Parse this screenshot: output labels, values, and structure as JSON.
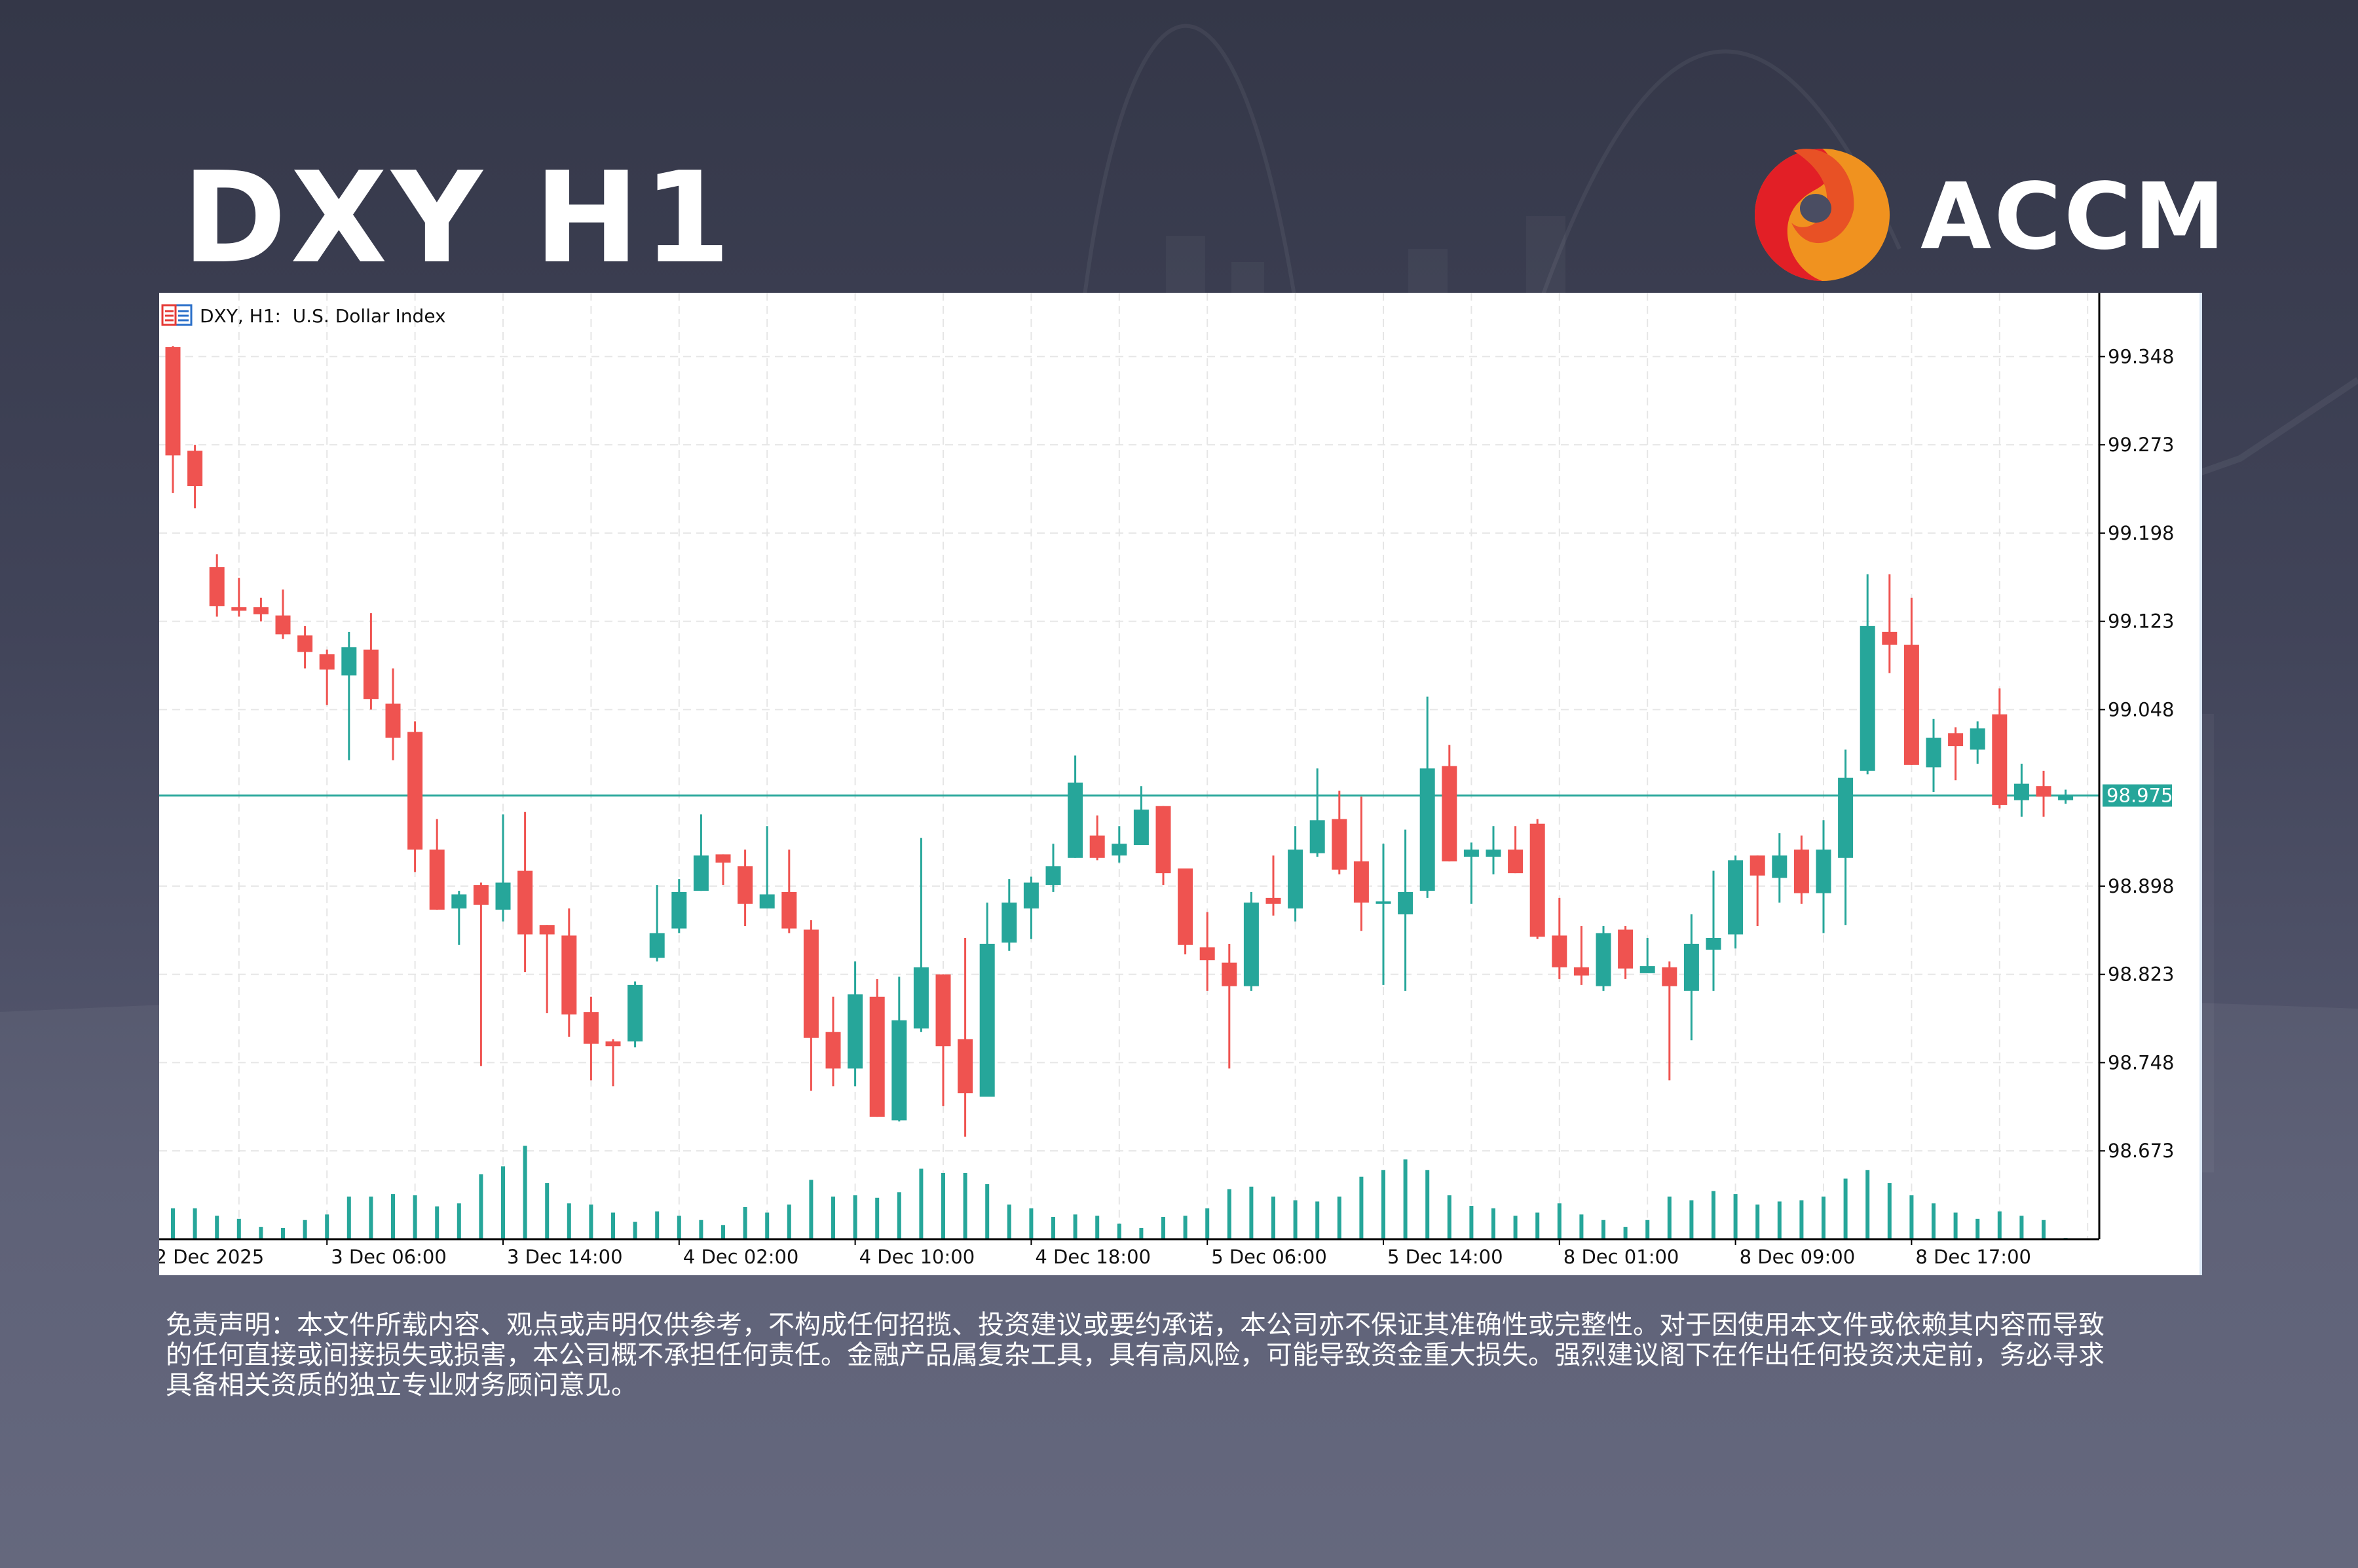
{
  "header": {
    "title": "DXY H1",
    "brand": "ACCM"
  },
  "chart_data": {
    "type": "candlestick",
    "legend": "DXY, H1:  U.S. Dollar Index",
    "current_price": "98.975",
    "colors": {
      "bull": "#26a69a",
      "bear": "#ef5350",
      "current_line": "#26a69a"
    },
    "grid": true,
    "y_ticks": [
      "99.348",
      "99.273",
      "99.198",
      "99.123",
      "99.048",
      "98.898",
      "98.823",
      "98.748",
      "98.673"
    ],
    "x_labels": [
      {
        "text": "2 Dec 2025",
        "bar": 0
      },
      {
        "text": "3 Dec 06:00",
        "bar": 8
      },
      {
        "text": "3 Dec 14:00",
        "bar": 16
      },
      {
        "text": "4 Dec 02:00",
        "bar": 24
      },
      {
        "text": "4 Dec 10:00",
        "bar": 32
      },
      {
        "text": "4 Dec 18:00",
        "bar": 40
      },
      {
        "text": "5 Dec 06:00",
        "bar": 48
      },
      {
        "text": "5 Dec 14:00",
        "bar": 56
      },
      {
        "text": "8 Dec 01:00",
        "bar": 64
      },
      {
        "text": "8 Dec 09:00",
        "bar": 72
      },
      {
        "text": "8 Dec 17:00",
        "bar": 80
      }
    ],
    "ohlc": [
      [
        99.356,
        99.357,
        99.232,
        99.264
      ],
      [
        99.268,
        99.273,
        99.219,
        99.238
      ],
      [
        99.169,
        99.18,
        99.127,
        99.136
      ],
      [
        99.135,
        99.16,
        99.127,
        99.132
      ],
      [
        99.135,
        99.143,
        99.123,
        99.129
      ],
      [
        99.128,
        99.15,
        99.108,
        99.112
      ],
      [
        99.111,
        99.119,
        99.083,
        99.097
      ],
      [
        99.095,
        99.099,
        99.052,
        99.082
      ],
      [
        99.077,
        99.114,
        99.005,
        99.101
      ],
      [
        99.099,
        99.13,
        99.048,
        99.057
      ],
      [
        99.053,
        99.083,
        99.005,
        99.024
      ],
      [
        99.029,
        99.038,
        98.91,
        98.929
      ],
      [
        98.929,
        98.955,
        98.878,
        98.878
      ],
      [
        98.879,
        98.894,
        98.848,
        98.891
      ],
      [
        98.899,
        98.901,
        98.745,
        98.882
      ],
      [
        98.878,
        98.959,
        98.868,
        98.901
      ],
      [
        98.911,
        98.961,
        98.825,
        98.857
      ],
      [
        98.865,
        98.865,
        98.79,
        98.857
      ],
      [
        98.856,
        98.879,
        98.77,
        98.789
      ],
      [
        98.791,
        98.804,
        98.733,
        98.764
      ],
      [
        98.766,
        98.768,
        98.728,
        98.762
      ],
      [
        98.766,
        98.817,
        98.761,
        98.814
      ],
      [
        98.837,
        98.899,
        98.834,
        98.858
      ],
      [
        98.862,
        98.904,
        98.858,
        98.893
      ],
      [
        98.894,
        98.959,
        98.894,
        98.924
      ],
      [
        98.925,
        98.925,
        98.899,
        98.918
      ],
      [
        98.915,
        98.929,
        98.864,
        98.883
      ],
      [
        98.879,
        98.949,
        98.879,
        98.891
      ],
      [
        98.893,
        98.929,
        98.858,
        98.862
      ],
      [
        98.861,
        98.869,
        98.724,
        98.769
      ],
      [
        98.774,
        98.804,
        98.728,
        98.743
      ],
      [
        98.743,
        98.834,
        98.728,
        98.806
      ],
      [
        98.804,
        98.819,
        98.702,
        98.702
      ],
      [
        98.699,
        98.821,
        98.698,
        98.784
      ],
      [
        98.777,
        98.939,
        98.774,
        98.829
      ],
      [
        98.823,
        98.823,
        98.711,
        98.762
      ],
      [
        98.768,
        98.854,
        98.685,
        98.722
      ],
      [
        98.719,
        98.884,
        98.719,
        98.849
      ],
      [
        98.85,
        98.904,
        98.843,
        98.884
      ],
      [
        98.879,
        98.906,
        98.853,
        98.901
      ],
      [
        98.899,
        98.934,
        98.893,
        98.915
      ],
      [
        98.922,
        99.009,
        98.922,
        98.986
      ],
      [
        98.941,
        98.958,
        98.92,
        98.922
      ],
      [
        98.924,
        98.949,
        98.918,
        98.934
      ],
      [
        98.933,
        98.983,
        98.933,
        98.963
      ],
      [
        98.966,
        98.966,
        98.899,
        98.909
      ],
      [
        98.913,
        98.913,
        98.84,
        98.848
      ],
      [
        98.846,
        98.876,
        98.809,
        98.835
      ],
      [
        98.833,
        98.849,
        98.743,
        98.813
      ],
      [
        98.813,
        98.893,
        98.809,
        98.884
      ],
      [
        98.888,
        98.924,
        98.873,
        98.883
      ],
      [
        98.879,
        98.949,
        98.868,
        98.929
      ],
      [
        98.926,
        98.998,
        98.923,
        98.954
      ],
      [
        98.955,
        98.979,
        98.908,
        98.912
      ],
      [
        98.919,
        98.974,
        98.86,
        98.884
      ],
      [
        98.883,
        98.934,
        98.814,
        98.885
      ],
      [
        98.874,
        98.946,
        98.809,
        98.893
      ],
      [
        98.894,
        99.059,
        98.888,
        98.998
      ],
      [
        99.0,
        99.018,
        98.919,
        98.919
      ],
      [
        98.923,
        98.935,
        98.883,
        98.929
      ],
      [
        98.923,
        98.949,
        98.908,
        98.929
      ],
      [
        98.929,
        98.949,
        98.909,
        98.909
      ],
      [
        98.951,
        98.955,
        98.853,
        98.855
      ],
      [
        98.856,
        98.888,
        98.819,
        98.829
      ],
      [
        98.829,
        98.864,
        98.814,
        98.822
      ],
      [
        98.813,
        98.864,
        98.809,
        98.858
      ],
      [
        98.861,
        98.864,
        98.819,
        98.828
      ],
      [
        98.824,
        98.854,
        98.824,
        98.83
      ],
      [
        98.829,
        98.834,
        98.733,
        98.813
      ],
      [
        98.809,
        98.874,
        98.767,
        98.849
      ],
      [
        98.844,
        98.911,
        98.809,
        98.854
      ],
      [
        98.857,
        98.924,
        98.845,
        98.92
      ],
      [
        98.924,
        98.924,
        98.864,
        98.907
      ],
      [
        98.905,
        98.943,
        98.884,
        98.924
      ],
      [
        98.929,
        98.941,
        98.883,
        98.892
      ],
      [
        98.892,
        98.954,
        98.858,
        98.929
      ],
      [
        98.922,
        99.014,
        98.865,
        98.99
      ],
      [
        98.996,
        99.163,
        98.993,
        99.119
      ],
      [
        99.114,
        99.163,
        99.079,
        99.103
      ],
      [
        99.103,
        99.143,
        99.001,
        99.001
      ],
      [
        98.999,
        99.04,
        98.978,
        99.024
      ],
      [
        99.028,
        99.033,
        98.988,
        99.017
      ],
      [
        99.014,
        99.038,
        99.002,
        99.032
      ],
      [
        99.044,
        99.066,
        98.964,
        98.967
      ],
      [
        98.971,
        99.002,
        98.957,
        98.985
      ],
      [
        98.983,
        98.996,
        98.957,
        98.974
      ],
      [
        98.971,
        98.98,
        98.968,
        98.975
      ]
    ],
    "volume": [
      50,
      50,
      38,
      33,
      20,
      18,
      31,
      40,
      69,
      69,
      73,
      71,
      53,
      58,
      105,
      118,
      151,
      91,
      58,
      56,
      43,
      28,
      45,
      38,
      31,
      23,
      52,
      43,
      56,
      96,
      69,
      71,
      67,
      76,
      114,
      107,
      107,
      89,
      56,
      50,
      36,
      40,
      38,
      25,
      18,
      36,
      38,
      50,
      81,
      85,
      69,
      63,
      61,
      69,
      101,
      112,
      129,
      112,
      71,
      54,
      50,
      38,
      43,
      58,
      40,
      31,
      20,
      31,
      69,
      63,
      78,
      73,
      56,
      61,
      63,
      69,
      98,
      112,
      91,
      71,
      58,
      43,
      33,
      45,
      38,
      31,
      2
    ]
  },
  "disclaimer": {
    "lines": [
      "免责声明：本文件所载内容、观点或声明仅供参考，不构成任何招揽、投资建议或要约承诺，本公司亦不保证其准确性或完整性。对于因使用本文件或依赖其内容而导致",
      "的任何直接或间接损失或损害，本公司概不承担任何责任。金融产品属复杂工具，具有高风险，可能导致资金重大损失。强烈建议阁下在作出任何投资决定前，务必寻求",
      "具备相关资质的独立专业财务顾问意见。"
    ]
  }
}
